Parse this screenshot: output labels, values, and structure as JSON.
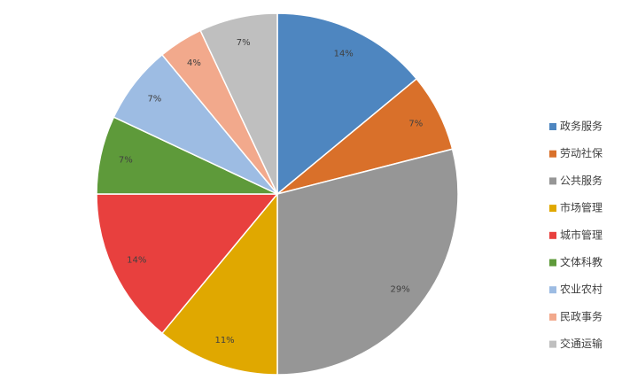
{
  "chart_data": {
    "type": "pie",
    "categories": [
      "政务服务",
      "劳动社保",
      "公共服务",
      "市场管理",
      "城市管理",
      "文体科教",
      "农业农村",
      "民政事务",
      "交通运输"
    ],
    "values": [
      14,
      7,
      29,
      11,
      14,
      7,
      7,
      4,
      7
    ],
    "value_labels": [
      "14%",
      "7%",
      "29%",
      "11%",
      "14%",
      "7%",
      "7%",
      "4%",
      "7%"
    ],
    "colors": [
      "#4e86c0",
      "#d9702a",
      "#969696",
      "#e0a800",
      "#e8403e",
      "#5e9a3a",
      "#9dbce3",
      "#f2a98c",
      "#bfbfbf"
    ],
    "legend": "right"
  }
}
